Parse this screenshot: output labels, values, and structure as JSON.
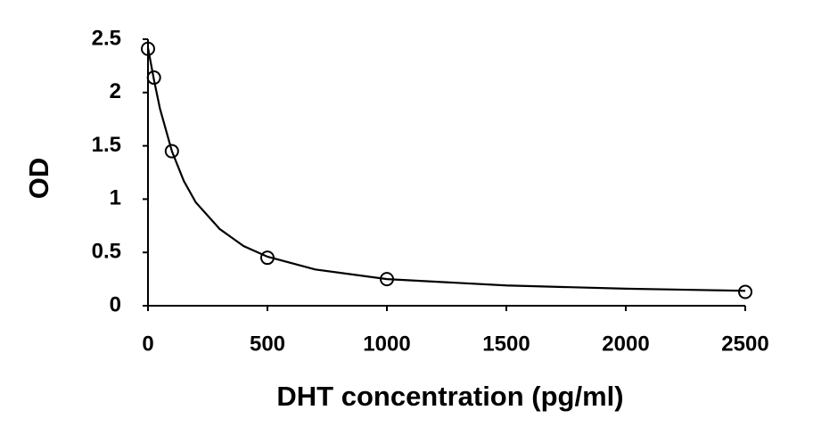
{
  "chart_data": {
    "type": "scatter",
    "xlabel": "DHT concentration (pg/ml)",
    "ylabel": "OD",
    "xlim": [
      0,
      2500
    ],
    "xticks": [
      0,
      500,
      1000,
      1500,
      2000,
      2500
    ],
    "ylim": [
      0,
      2.5
    ],
    "yticks": [
      0,
      0.5,
      1,
      1.5,
      2,
      2.5
    ],
    "grid": false,
    "series": [
      {
        "style": "marker",
        "color": "#000000",
        "x": [
          0,
          25,
          100,
          500,
          1000,
          2500
        ],
        "values": [
          2.41,
          2.14,
          1.45,
          0.45,
          0.25,
          0.13
        ]
      },
      {
        "style": "line",
        "color": "#000000",
        "x": [
          0,
          10,
          25,
          50,
          100,
          150,
          200,
          300,
          400,
          500,
          700,
          1000,
          1500,
          2000,
          2500
        ],
        "values": [
          2.42,
          2.3,
          2.12,
          1.85,
          1.45,
          1.17,
          0.97,
          0.72,
          0.56,
          0.46,
          0.34,
          0.25,
          0.19,
          0.16,
          0.14
        ]
      }
    ]
  }
}
